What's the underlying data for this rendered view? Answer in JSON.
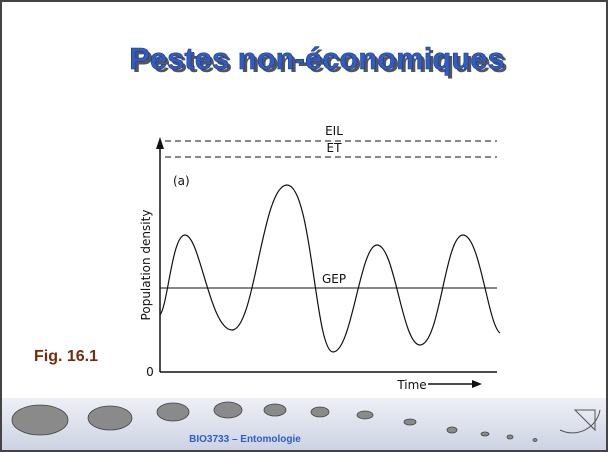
{
  "title": "Pestes non-économiques",
  "figure_label": "Fig. 16.1",
  "figure": {
    "eil": "EIL",
    "et": "ET",
    "panel": "(a)",
    "y_axis_label": "Population density",
    "gep": "GEP",
    "x_axis_label": "Time",
    "origin": "0"
  },
  "footer": "BIO3733 – Entomologie"
}
